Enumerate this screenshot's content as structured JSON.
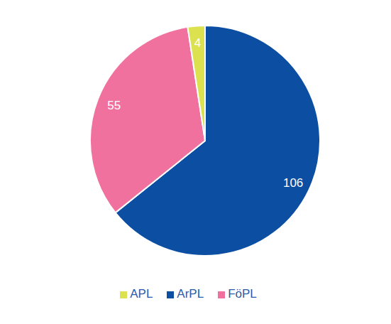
{
  "chart_data": {
    "type": "pie",
    "categories": [
      "ArPL",
      "FöPL",
      "APL"
    ],
    "values": [
      106,
      55,
      4
    ],
    "colors": [
      "#0b4ea2",
      "#f0719e",
      "#dbe14f"
    ],
    "data_labels": true,
    "legend": "bottom"
  }
}
